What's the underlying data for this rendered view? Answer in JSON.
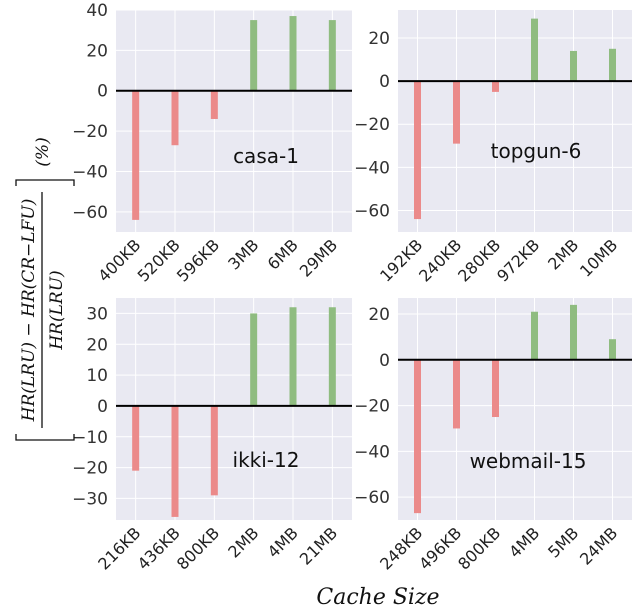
{
  "colors": {
    "negative": "#eb8a8a",
    "positive": "#8fbc80",
    "panel_bg": "#e9e9f2",
    "zero_line": "#000000"
  },
  "figure": {
    "xlabel": "Cache Size",
    "ylabel": {
      "numerator": "HR(LRU) − HR(CR−LFU)",
      "denominator": "HR(LRU)",
      "unit": "(%)"
    }
  },
  "chart_data": [
    {
      "type": "bar",
      "title": "casa-1",
      "categories": [
        "400KB",
        "520KB",
        "596KB",
        "3MB",
        "6MB",
        "29MB"
      ],
      "values": [
        -64,
        -27,
        -14,
        35,
        37,
        35
      ],
      "ylim": [
        -70,
        40
      ],
      "yticks": [
        -60,
        -40,
        -20,
        0,
        20,
        40
      ],
      "grid": true
    },
    {
      "type": "bar",
      "title": "topgun-6",
      "categories": [
        "192KB",
        "240KB",
        "280KB",
        "972KB",
        "2MB",
        "10MB"
      ],
      "values": [
        -64,
        -29,
        -5,
        29,
        14,
        15
      ],
      "ylim": [
        -70,
        33
      ],
      "yticks": [
        -60,
        -40,
        -20,
        0,
        20
      ],
      "grid": true
    },
    {
      "type": "bar",
      "title": "ikki-12",
      "categories": [
        "216KB",
        "436KB",
        "800KB",
        "2MB",
        "4MB",
        "21MB"
      ],
      "values": [
        -21,
        -36,
        -29,
        30,
        32,
        32
      ],
      "ylim": [
        -37,
        35
      ],
      "yticks": [
        -30,
        -20,
        -10,
        0,
        10,
        20,
        30
      ],
      "grid": true
    },
    {
      "type": "bar",
      "title": "webmail-15",
      "categories": [
        "248KB",
        "496KB",
        "800KB",
        "4MB",
        "5MB",
        "24MB"
      ],
      "values": [
        -67,
        -30,
        -25,
        21,
        24,
        9
      ],
      "ylim": [
        -70,
        27
      ],
      "yticks": [
        -60,
        -40,
        -20,
        0,
        20
      ],
      "grid": true
    }
  ]
}
